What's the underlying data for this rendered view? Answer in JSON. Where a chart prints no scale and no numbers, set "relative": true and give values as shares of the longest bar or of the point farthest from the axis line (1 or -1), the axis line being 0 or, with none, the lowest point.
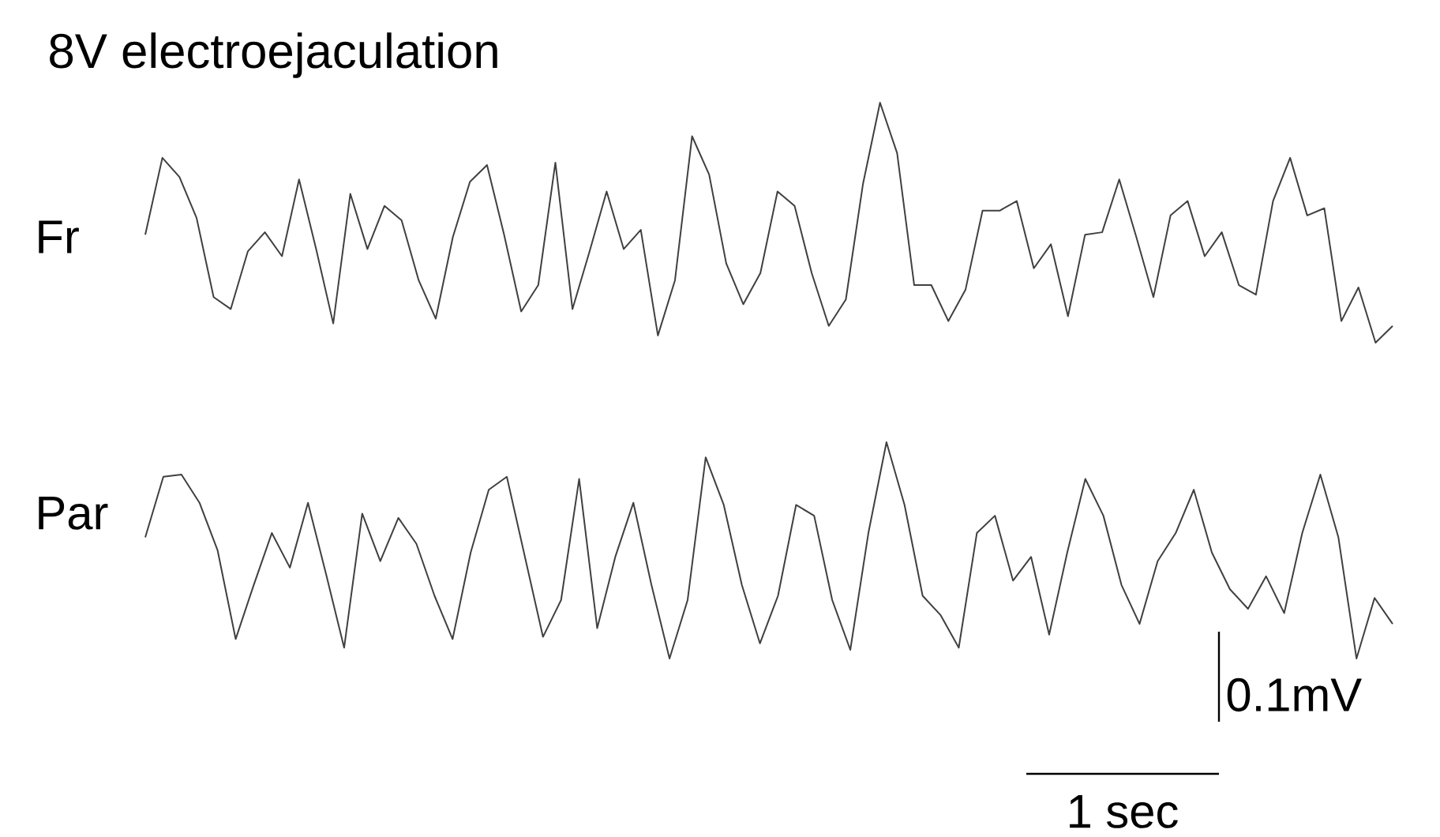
{
  "chart_data": [
    {
      "type": "line",
      "title": "8V electroejaculation",
      "relative": true,
      "categories": [
        null,
        null,
        null,
        null,
        null,
        null,
        null,
        null,
        null,
        null,
        null,
        null,
        null,
        null,
        null,
        null,
        null,
        null,
        null,
        null,
        null,
        null,
        null,
        null,
        null,
        null,
        null,
        null,
        null,
        null,
        null,
        null,
        null,
        null,
        null,
        null,
        null,
        null,
        null,
        null,
        null,
        null,
        null,
        null,
        null,
        null,
        null,
        null,
        null,
        null,
        null,
        null,
        null,
        null,
        null,
        null,
        null,
        null,
        null,
        null,
        null,
        null,
        null,
        null,
        null,
        null,
        null,
        null,
        null,
        null,
        null,
        null,
        null,
        null
      ],
      "series": [
        {
          "name": "Fr",
          "color": "#404040",
          "values": [
            0.45,
            0.77,
            0.69,
            0.52,
            0.19,
            0.14,
            0.38,
            0.46,
            0.36,
            0.68,
            0.39,
            0.08,
            0.62,
            0.39,
            0.57,
            0.51,
            0.26,
            0.1,
            0.44,
            0.67,
            0.74,
            0.45,
            0.13,
            0.24,
            0.75,
            0.14,
            0.38,
            0.63,
            0.39,
            0.47,
            0.03,
            0.26,
            0.86,
            0.7,
            0.33,
            0.16,
            0.29,
            0.63,
            0.57,
            0.29,
            0.07,
            0.18,
            0.66,
            1,
            0.79,
            0.24,
            0.24,
            0.09,
            0.22,
            0.55,
            0.55,
            0.59,
            0.31,
            0.41,
            0.11,
            0.45,
            0.46,
            0.68,
            0.44,
            0.19,
            0.53,
            0.59,
            0.36,
            0.46,
            0.24,
            0.2,
            0.59,
            0.77,
            0.53,
            0.56,
            0.09,
            0.23,
            0,
            0.07
          ]
        }
      ]
    },
    {
      "type": "line",
      "relative": true,
      "annotations": [
        "0.1mV",
        "1 sec"
      ],
      "categories": [
        null,
        null,
        null,
        null,
        null,
        null,
        null,
        null,
        null,
        null,
        null,
        null,
        null,
        null,
        null,
        null,
        null,
        null,
        null,
        null,
        null,
        null,
        null,
        null,
        null,
        null,
        null,
        null,
        null,
        null,
        null,
        null,
        null,
        null,
        null,
        null,
        null,
        null,
        null,
        null,
        null,
        null,
        null,
        null,
        null,
        null,
        null,
        null,
        null,
        null,
        null,
        null,
        null,
        null,
        null,
        null,
        null,
        null,
        null,
        null,
        null,
        null,
        null,
        null,
        null,
        null,
        null,
        null,
        null,
        null
      ],
      "series": [
        {
          "name": "Par",
          "color": "#404040",
          "values": [
            0.56,
            0.84,
            0.85,
            0.72,
            0.5,
            0.09,
            0.34,
            0.58,
            0.42,
            0.72,
            0.39,
            0.05,
            0.67,
            0.45,
            0.65,
            0.53,
            0.29,
            0.09,
            0.49,
            0.78,
            0.84,
            0.47,
            0.1,
            0.27,
            0.83,
            0.14,
            0.47,
            0.72,
            0.34,
            0,
            0.27,
            0.93,
            0.71,
            0.34,
            0.07,
            0.29,
            0.71,
            0.66,
            0.27,
            0.04,
            0.58,
            1,
            0.71,
            0.29,
            0.2,
            0.05,
            0.58,
            0.66,
            0.36,
            0.47,
            0.11,
            0.49,
            0.83,
            0.66,
            0.34,
            0.16,
            0.45,
            0.58,
            0.78,
            0.49,
            0.32,
            0.23,
            0.38,
            0.21,
            0.58,
            0.85,
            0.56,
            0,
            0.28,
            0.16
          ]
        }
      ]
    }
  ]
}
